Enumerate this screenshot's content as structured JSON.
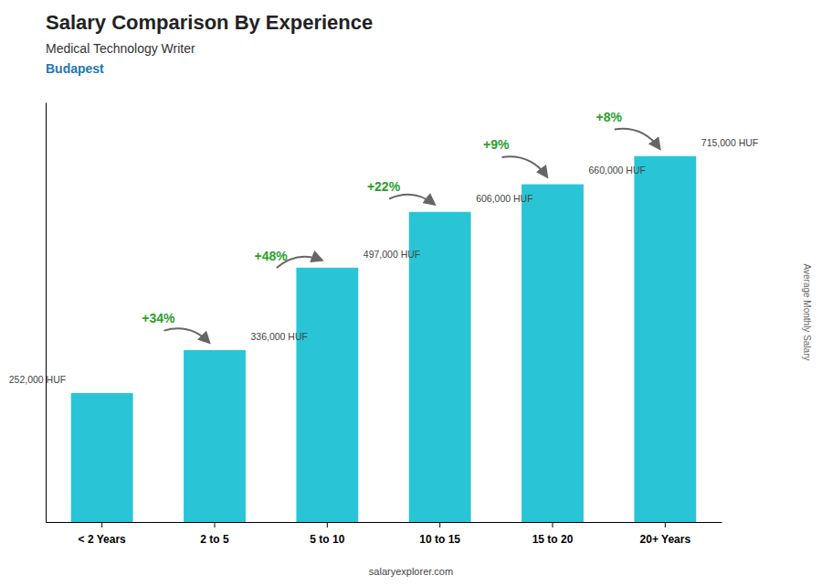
{
  "chart_data": {
    "type": "bar",
    "title": "Salary Comparison By Experience",
    "subtitle": [
      "Medical Technology Writer",
      "Budapest"
    ],
    "ylabel": "Average Monthly Salary",
    "categories": [
      "< 2 Years",
      "2 to 5",
      "5 to 10",
      "10 to 15",
      "15 to 20",
      "20+ Years"
    ],
    "values": [
      252000,
      336000,
      497000,
      606000,
      660000,
      715000
    ],
    "value_labels": [
      "252,000 HUF",
      "336,000 HUF",
      "497,000 HUF",
      "606,000 HUF",
      "660,000 HUF",
      "715,000 HUF"
    ],
    "data_labels": true,
    "annotations": [
      "+34%",
      "+48%",
      "+22%",
      "+9%",
      "+8%",
      "salaryexplorer.com"
    ],
    "color": "#29c5d6",
    "ylim": [
      0,
      820000
    ],
    "grid": false,
    "tick_labels": "x"
  }
}
